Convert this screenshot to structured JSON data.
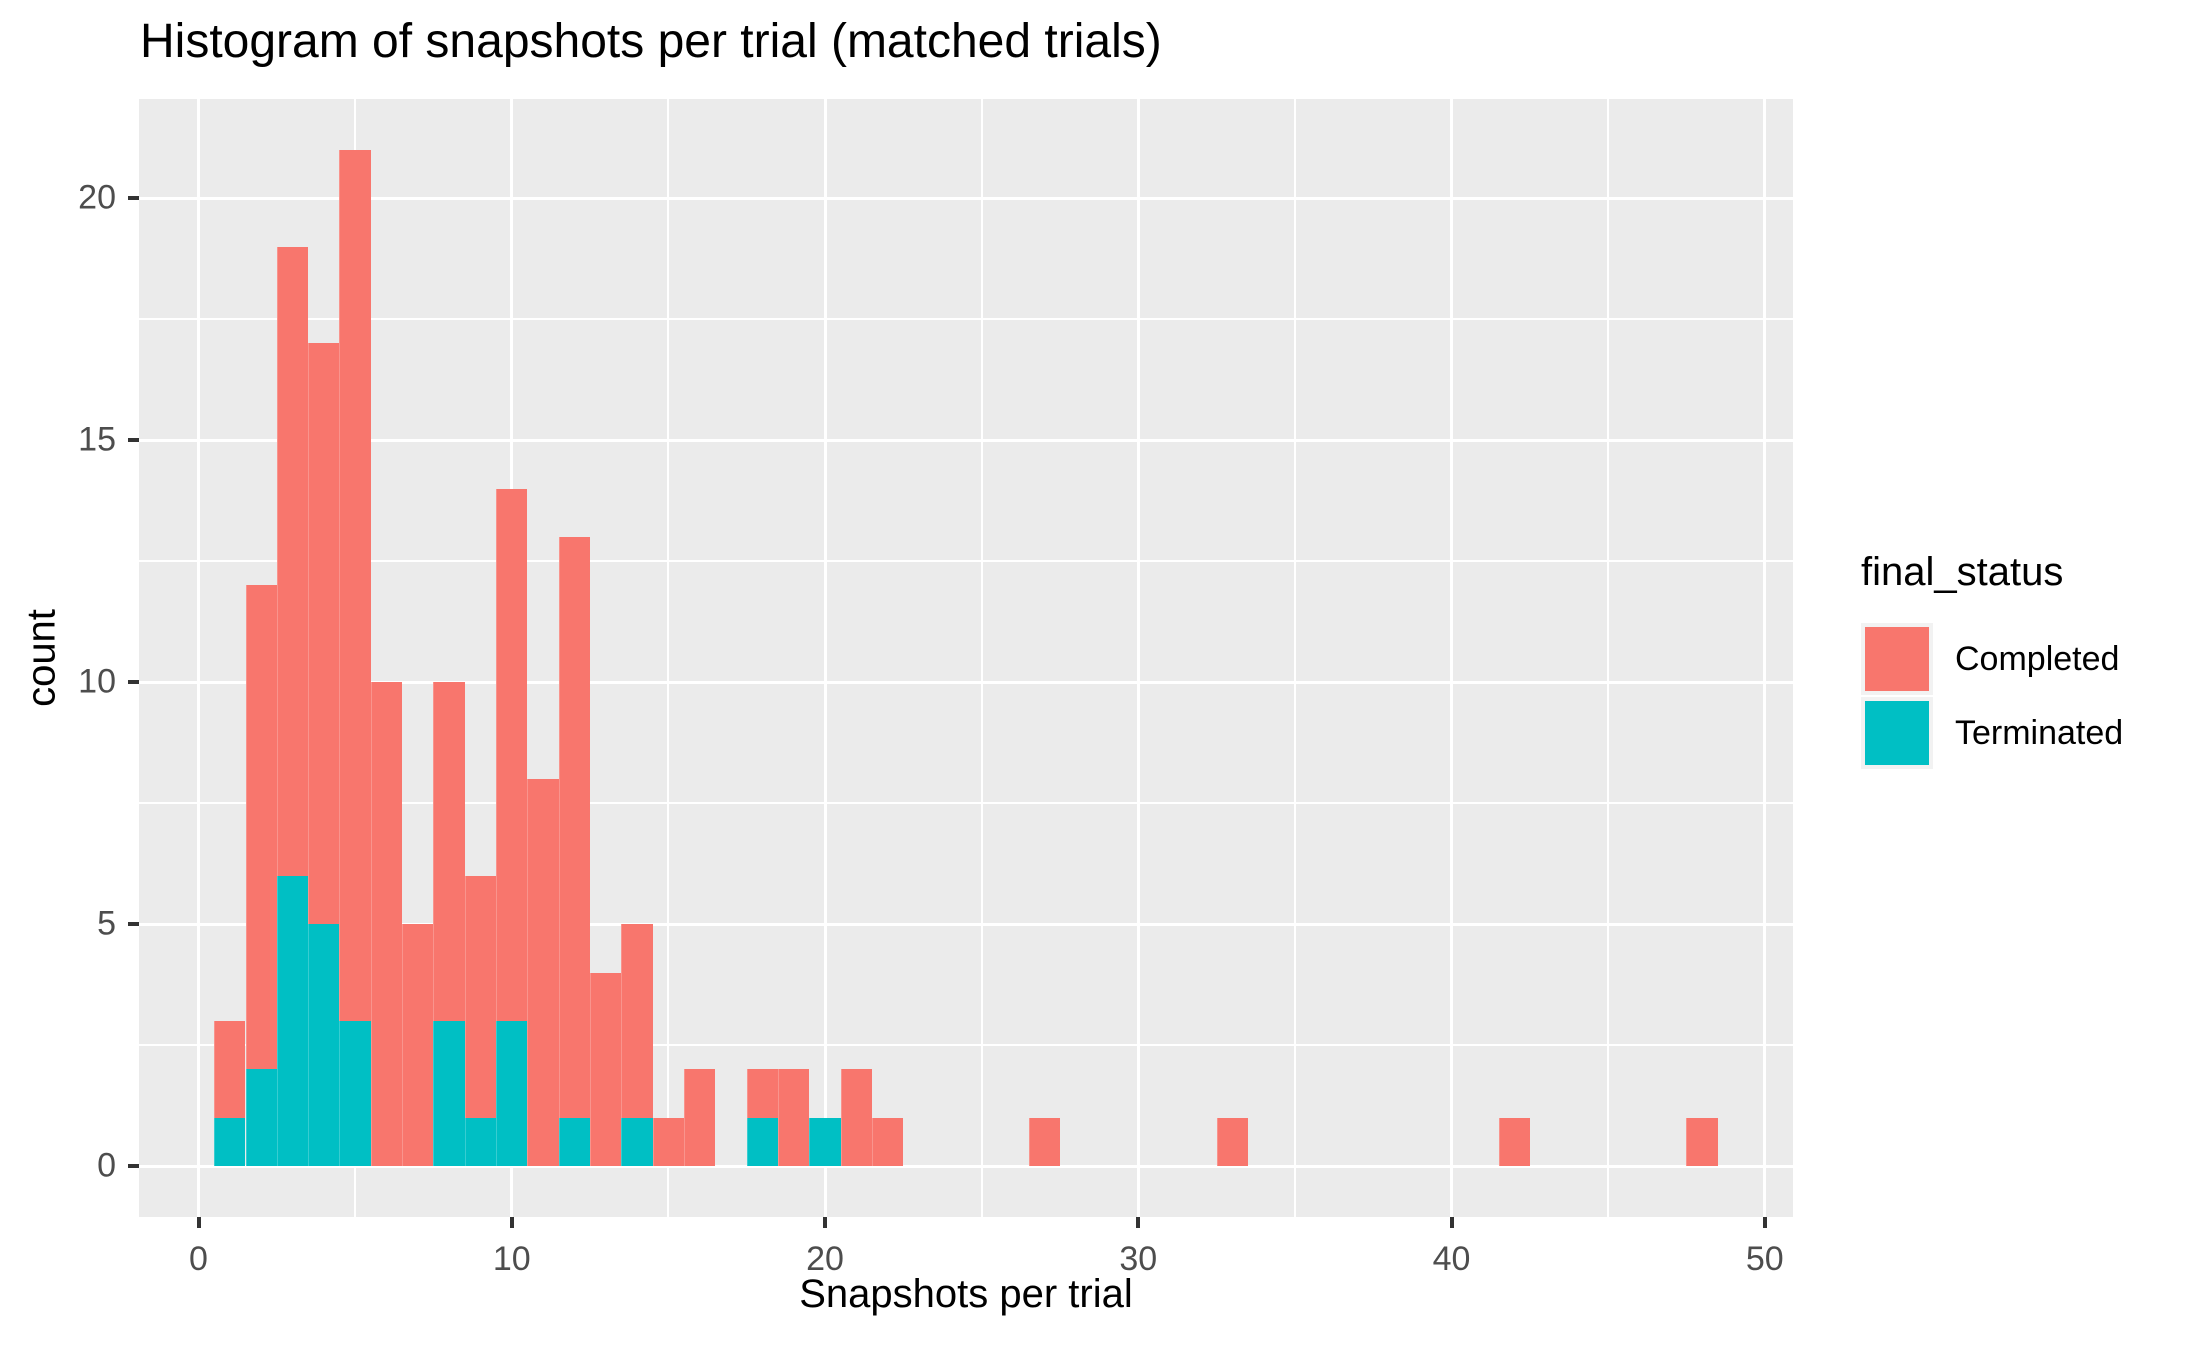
{
  "title": "Histogram of snapshots per trial (matched trials)",
  "axes": {
    "x": {
      "label": "Snapshots per trial",
      "ticks": [
        0,
        10,
        20,
        30,
        40,
        50
      ],
      "minor_ticks": [
        5,
        15,
        25,
        35,
        45
      ],
      "domain": [
        -1.9,
        50.9
      ]
    },
    "y": {
      "label": "count",
      "ticks": [
        0,
        5,
        10,
        15,
        20
      ],
      "minor_ticks": [
        2.5,
        7.5,
        12.5,
        17.5
      ],
      "domain": [
        -1.05,
        22.05
      ]
    }
  },
  "legend": {
    "title": "final_status",
    "items": [
      {
        "label": "Completed",
        "color": "#F8766D"
      },
      {
        "label": "Terminated",
        "color": "#00BFC4"
      }
    ]
  },
  "colors": {
    "completed": "#F8766D",
    "terminated": "#00BFC4",
    "panel_background": "#EBEBEB",
    "gridline": "#FFFFFF",
    "tick_text": "#4D4D4D",
    "tick_mark": "#333333",
    "title_text": "#000000"
  },
  "chart_data": {
    "type": "bar",
    "subtype": "stacked-histogram",
    "title": "Histogram of snapshots per trial (matched trials)",
    "xlabel": "Snapshots per trial",
    "ylabel": "count",
    "legend_title": "final_status",
    "legend_position": "right",
    "grid": true,
    "bin_width": 1,
    "xlim": [
      -1.9,
      50.9
    ],
    "ylim": [
      -1.05,
      22.05
    ],
    "bin_centers": [
      1,
      2,
      3,
      4,
      5,
      6,
      7,
      8,
      9,
      10,
      11,
      12,
      13,
      14,
      15,
      16,
      17,
      18,
      19,
      20,
      21,
      22,
      27,
      33,
      42,
      48
    ],
    "series": [
      {
        "name": "Terminated",
        "color": "#00BFC4",
        "stack_order": "bottom",
        "values": [
          1,
          2,
          6,
          5,
          3,
          0,
          0,
          3,
          1,
          3,
          0,
          1,
          0,
          1,
          0,
          0,
          0,
          1,
          0,
          1,
          0,
          0,
          0,
          0,
          0,
          0
        ]
      },
      {
        "name": "Completed",
        "color": "#F8766D",
        "stack_order": "top",
        "values": [
          2,
          10,
          13,
          12,
          18,
          10,
          5,
          7,
          5,
          11,
          8,
          12,
          4,
          4,
          1,
          2,
          0,
          1,
          2,
          0,
          2,
          1,
          1,
          1,
          1,
          1
        ]
      }
    ],
    "bin_totals": [
      3,
      12,
      19,
      17,
      21,
      10,
      5,
      10,
      6,
      14,
      8,
      13,
      4,
      5,
      1,
      2,
      0,
      2,
      2,
      1,
      2,
      1,
      1,
      1,
      1,
      1
    ]
  }
}
